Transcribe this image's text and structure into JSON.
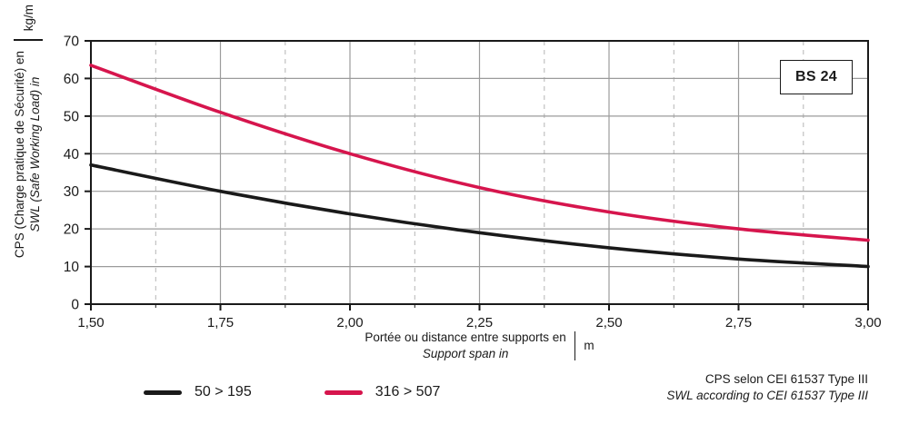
{
  "frame": {
    "bs_label": "BS 24"
  },
  "y_axis": {
    "title_fr": "CPS (Charge pratique de Sécurité) en",
    "title_en": "SWL (Safe Working Load) in",
    "unit": "kg/m"
  },
  "x_axis": {
    "title_fr": "Portée ou distance entre supports en",
    "title_en": "Support span in",
    "unit": "m"
  },
  "legend": [
    {
      "label": "50 > 195",
      "color": "#1a1a1a"
    },
    {
      "label": "316 > 507",
      "color": "#d6154d"
    }
  ],
  "footer": {
    "line_fr": "CPS selon CEI 61537 Type III",
    "line_en": "SWL according to CEI 61537 Type III"
  },
  "chart_data": {
    "type": "line",
    "x": [
      1.5,
      1.75,
      2.0,
      2.25,
      2.5,
      2.75,
      3.0
    ],
    "x_tick_labels": [
      "1,50",
      "1,75",
      "2,00",
      "2,25",
      "2,50",
      "2,75",
      "3,00"
    ],
    "y_ticks": [
      0,
      10,
      20,
      30,
      40,
      50,
      60,
      70
    ],
    "xlim": [
      1.5,
      3.0
    ],
    "ylim": [
      0,
      70
    ],
    "xlabel": "Portée ou distance entre supports en / Support span in (m)",
    "ylabel": "CPS (Charge pratique de Sécurité) en / SWL (Safe Working Load) in (kg/m)",
    "grid": {
      "h_major": 10,
      "v_major": 0.25,
      "v_minor": 0.125,
      "minor_dashed": true
    },
    "series": [
      {
        "name": "50 > 195",
        "color": "#1a1a1a",
        "values": [
          37,
          30,
          24,
          19,
          15,
          12,
          10
        ]
      },
      {
        "name": "316 > 507",
        "color": "#d6154d",
        "values": [
          63.5,
          51,
          40,
          31,
          24.5,
          20,
          17
        ]
      }
    ]
  }
}
